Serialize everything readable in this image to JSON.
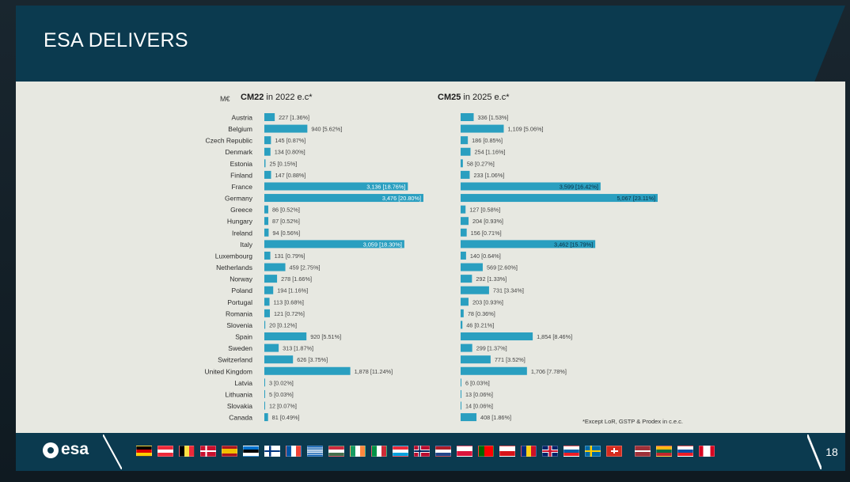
{
  "title": "ESA DELIVERS",
  "brand": {
    "logo_text": "esa"
  },
  "page_number": "18",
  "colors": {
    "header": "#0b3a4f",
    "bar": "#2a9fc0",
    "panel": "#e7e8e1"
  },
  "flags": [
    "germany-flag",
    "austria-flag",
    "belgium-flag",
    "denmark-flag",
    "spain-flag",
    "estonia-flag",
    "finland-flag",
    "france-flag",
    "greece-flag",
    "hungary-flag",
    "ireland-flag",
    "italy-flag",
    "luxembourg-flag",
    "norway-flag",
    "netherlands-flag",
    "poland-flag",
    "portugal-flag",
    "czech-republic-flag",
    "romania-flag",
    "united-kingdom-flag",
    "slovenia-flag",
    "sweden-flag",
    "switzerland-flag",
    "latvia-flag",
    "lithuania-flag",
    "slovakia-flag",
    "canada-flag"
  ],
  "chart_data": {
    "type": "bar",
    "orientation": "horizontal",
    "unit_label": "M€",
    "categories": [
      "Austria",
      "Belgium",
      "Czech Republic",
      "Denmark",
      "Estonia",
      "Finland",
      "France",
      "Germany",
      "Greece",
      "Hungary",
      "Ireland",
      "Italy",
      "Luxembourg",
      "Netherlands",
      "Norway",
      "Poland",
      "Portugal",
      "Romania",
      "Slovenia",
      "Spain",
      "Sweden",
      "Switzerland",
      "United Kingdom",
      "Latvia",
      "Lithuania",
      "Slovakia",
      "Canada"
    ],
    "series": [
      {
        "name": "CM22",
        "title_bold": "CM22",
        "title_rest": " in 2022 e.c*",
        "values": [
          227,
          940,
          145,
          134,
          25,
          147,
          3136,
          3476,
          86,
          87,
          94,
          3059,
          131,
          459,
          278,
          194,
          113,
          121,
          20,
          920,
          313,
          626,
          1878,
          3,
          5,
          12,
          81
        ],
        "labels": [
          "227 [1.36%]",
          "940 [5.62%]",
          "145 [0.87%]",
          "134 [0.80%]",
          "25 [0.15%]",
          "147 [0.88%]",
          "3,136 [18.76%]",
          "3,476 [20.80%]",
          "86 [0.52%]",
          "87 [0.52%]",
          "94 [0.56%]",
          "3,059 [18.30%]",
          "131 [0.79%]",
          "459 [2.75%]",
          "278 [1.66%]",
          "194 [1.16%]",
          "113 [0.68%]",
          "121 [0.72%]",
          "20 [0.12%]",
          "920 [5.51%]",
          "313 [1.87%]",
          "626 [3.75%]",
          "1,878 [11.24%]",
          "3 [0.02%]",
          "5 [0.03%]",
          "12 [0.07%]",
          "81 [0.49%]"
        ]
      },
      {
        "name": "CM25",
        "title_bold": "CM25",
        "title_rest": " in 2025 e.c*",
        "values": [
          336,
          1109,
          186,
          254,
          58,
          233,
          3599,
          5067,
          127,
          204,
          156,
          3462,
          140,
          569,
          292,
          731,
          203,
          78,
          46,
          1854,
          299,
          771,
          1706,
          6,
          13,
          14,
          408
        ],
        "labels": [
          "336 [1.53%]",
          "1,109 [5.06%]",
          "186 [0.85%]",
          "254 [1.16%]",
          "58 [0.27%]",
          "233 [1.06%]",
          "3,599 [16.42%]",
          "5,067 [23.11%]",
          "127 [0.58%]",
          "204 [0.93%]",
          "156 [0.71%]",
          "3,462 [15.79%]",
          "140 [0.64%]",
          "569 [2.60%]",
          "292 [1.33%]",
          "731 [3.34%]",
          "203 [0.93%]",
          "78 [0.36%]",
          "46 [0.21%]",
          "1,854 [8.46%]",
          "299 [1.37%]",
          "771 [3.52%]",
          "1,706 [7.78%]",
          "6 [0.03%]",
          "13 [0.06%]",
          "14 [0.06%]",
          "408 [1.86%]"
        ]
      }
    ],
    "footnote": "*Except LoR, GSTP & Prodex in c.e.c."
  }
}
